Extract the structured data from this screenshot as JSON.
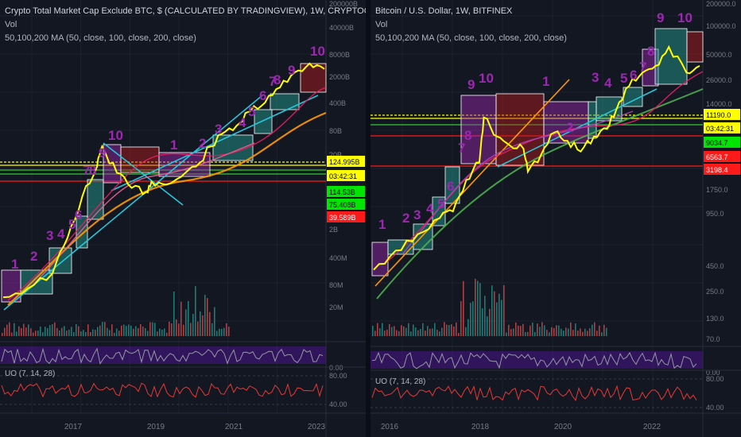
{
  "left_chart": {
    "title": "Crypto Total Market Cap Exclude BTC, $ (CALCULATED BY TRADINGVIEW), 1W, CRYPTOCAP",
    "vol_label": "Vol",
    "ma_label": "50,100,200 MA (50, close, 100, close, 200, close)",
    "uo_label": "UO (7, 14, 28)",
    "price_ticks": [
      "200000B",
      "40000B",
      "8000B",
      "2000B",
      "400B",
      "80B",
      "20B",
      "2B",
      "400M",
      "80M",
      "20M"
    ],
    "volume_ticks": [],
    "stoch_ticks": [
      "0.00"
    ],
    "uo_ticks": [
      "80.00",
      "40.00"
    ],
    "time_ticks": [
      "2017",
      "2019",
      "2021",
      "2023"
    ],
    "price_badges": [
      {
        "text": "124.995B",
        "color": "#ffff00",
        "text_color": "#000000"
      },
      {
        "text": "03:42:31",
        "color": "#ffff00",
        "text_color": "#000000"
      },
      {
        "text": "114.53B",
        "color": "#00e600",
        "text_color": "#000000"
      },
      {
        "text": "75.408B",
        "color": "#00e600",
        "text_color": "#000000"
      },
      {
        "text": "39.589B",
        "color": "#ff1a1a",
        "text_color": "#ffffff"
      }
    ],
    "wave_labels": [
      "1",
      "2",
      "3",
      "4",
      "5",
      "6",
      "7",
      "8",
      "9",
      "10",
      "1",
      "2",
      "3",
      "4",
      "5",
      "6",
      "7",
      "8",
      "9",
      "10"
    ]
  },
  "right_chart": {
    "title": "Bitcoin / U.S. Dollar, 1W, BITFINEX",
    "vol_label": "Vol",
    "ma_label": "50,100,200 MA (50, close, 100, close, 200, close)",
    "uo_label": "UO (7, 14, 28)",
    "price_ticks": [
      "200000.0",
      "100000.0",
      "50000.0",
      "26000.0",
      "14000.0",
      "1750.0",
      "950.0",
      "450.0",
      "250.0",
      "130.0",
      "70.0"
    ],
    "stoch_ticks": [
      "0.00"
    ],
    "uo_ticks": [
      "80.00",
      "40.00"
    ],
    "time_ticks": [
      "2016",
      "2018",
      "2020",
      "2022"
    ],
    "price_badges": [
      {
        "text": "11190.0",
        "color": "#ffff00",
        "text_color": "#000000"
      },
      {
        "text": "03:42:31",
        "color": "#ffff00",
        "text_color": "#000000"
      },
      {
        "text": "9034.7",
        "color": "#00e600",
        "text_color": "#000000"
      },
      {
        "text": "6563.7",
        "color": "#ff1a1a",
        "text_color": "#ffffff"
      },
      {
        "text": "3198.4",
        "color": "#ff1a1a",
        "text_color": "#ffffff"
      }
    ],
    "wave_labels": [
      "1",
      "2",
      "3",
      "4",
      "5",
      "6",
      "7",
      "8",
      "9",
      "10",
      "1",
      "2",
      "3",
      "4",
      "5",
      "6",
      "7",
      "8",
      "9",
      "10"
    ]
  },
  "colors": {
    "background": "#131722",
    "price_line": "#ffff00",
    "wave_label": "#9c27b0",
    "ma50": "#e91e63",
    "ma100": "#26c6da",
    "ma200": "#ff9800",
    "volume": "#ef5350",
    "uo": "#e53935",
    "stoch_band": "#4a148c"
  },
  "chart_data": [
    {
      "type": "line",
      "title": "Crypto Total Market Cap Exclude BTC, $ (CALCULATED BY TRADINGVIEW), 1W, CRYPTOCAP",
      "yscale": "log",
      "x": [
        2016.0,
        2016.5,
        2017.0,
        2017.3,
        2017.6,
        2017.9,
        2018.0,
        2018.3,
        2018.6,
        2018.9,
        2019.0,
        2019.3,
        2019.6,
        2019.9,
        2020.2,
        2020.5,
        2020.8,
        2021.0,
        2021.3,
        2021.6,
        2021.9,
        2022.2,
        2022.5
      ],
      "series": [
        {
          "values": [
            20,
            30,
            60,
            300,
            2000,
            8000,
            20000,
            6000,
            3000,
            2500,
            4000,
            3500,
            5000,
            8000,
            20000,
            40000,
            60000,
            100000,
            150000,
            300000,
            600000,
            900000,
            700000
          ]
        }
      ]
    },
    {
      "type": "line",
      "title": "Bitcoin / U.S. Dollar, 1W, BITFINEX",
      "yscale": "log",
      "x": [
        2015.5,
        2016.0,
        2016.5,
        2017.0,
        2017.3,
        2017.6,
        2017.9,
        2018.0,
        2018.3,
        2018.6,
        2018.9,
        2019.0,
        2019.3,
        2019.6,
        2019.9,
        2020.2,
        2020.5,
        2020.8,
        2021.0,
        2021.3,
        2021.6,
        2021.9,
        2022.2,
        2022.6,
        2022.9
      ],
      "series": [
        {
          "values": [
            250,
            420,
            650,
            1000,
            1200,
            2800,
            4500,
            15000,
            9000,
            7000,
            6500,
            3500,
            5500,
            10000,
            8000,
            6000,
            9000,
            11000,
            18000,
            35000,
            50000,
            60000,
            100000,
            50000,
            60000
          ]
        }
      ]
    }
  ]
}
